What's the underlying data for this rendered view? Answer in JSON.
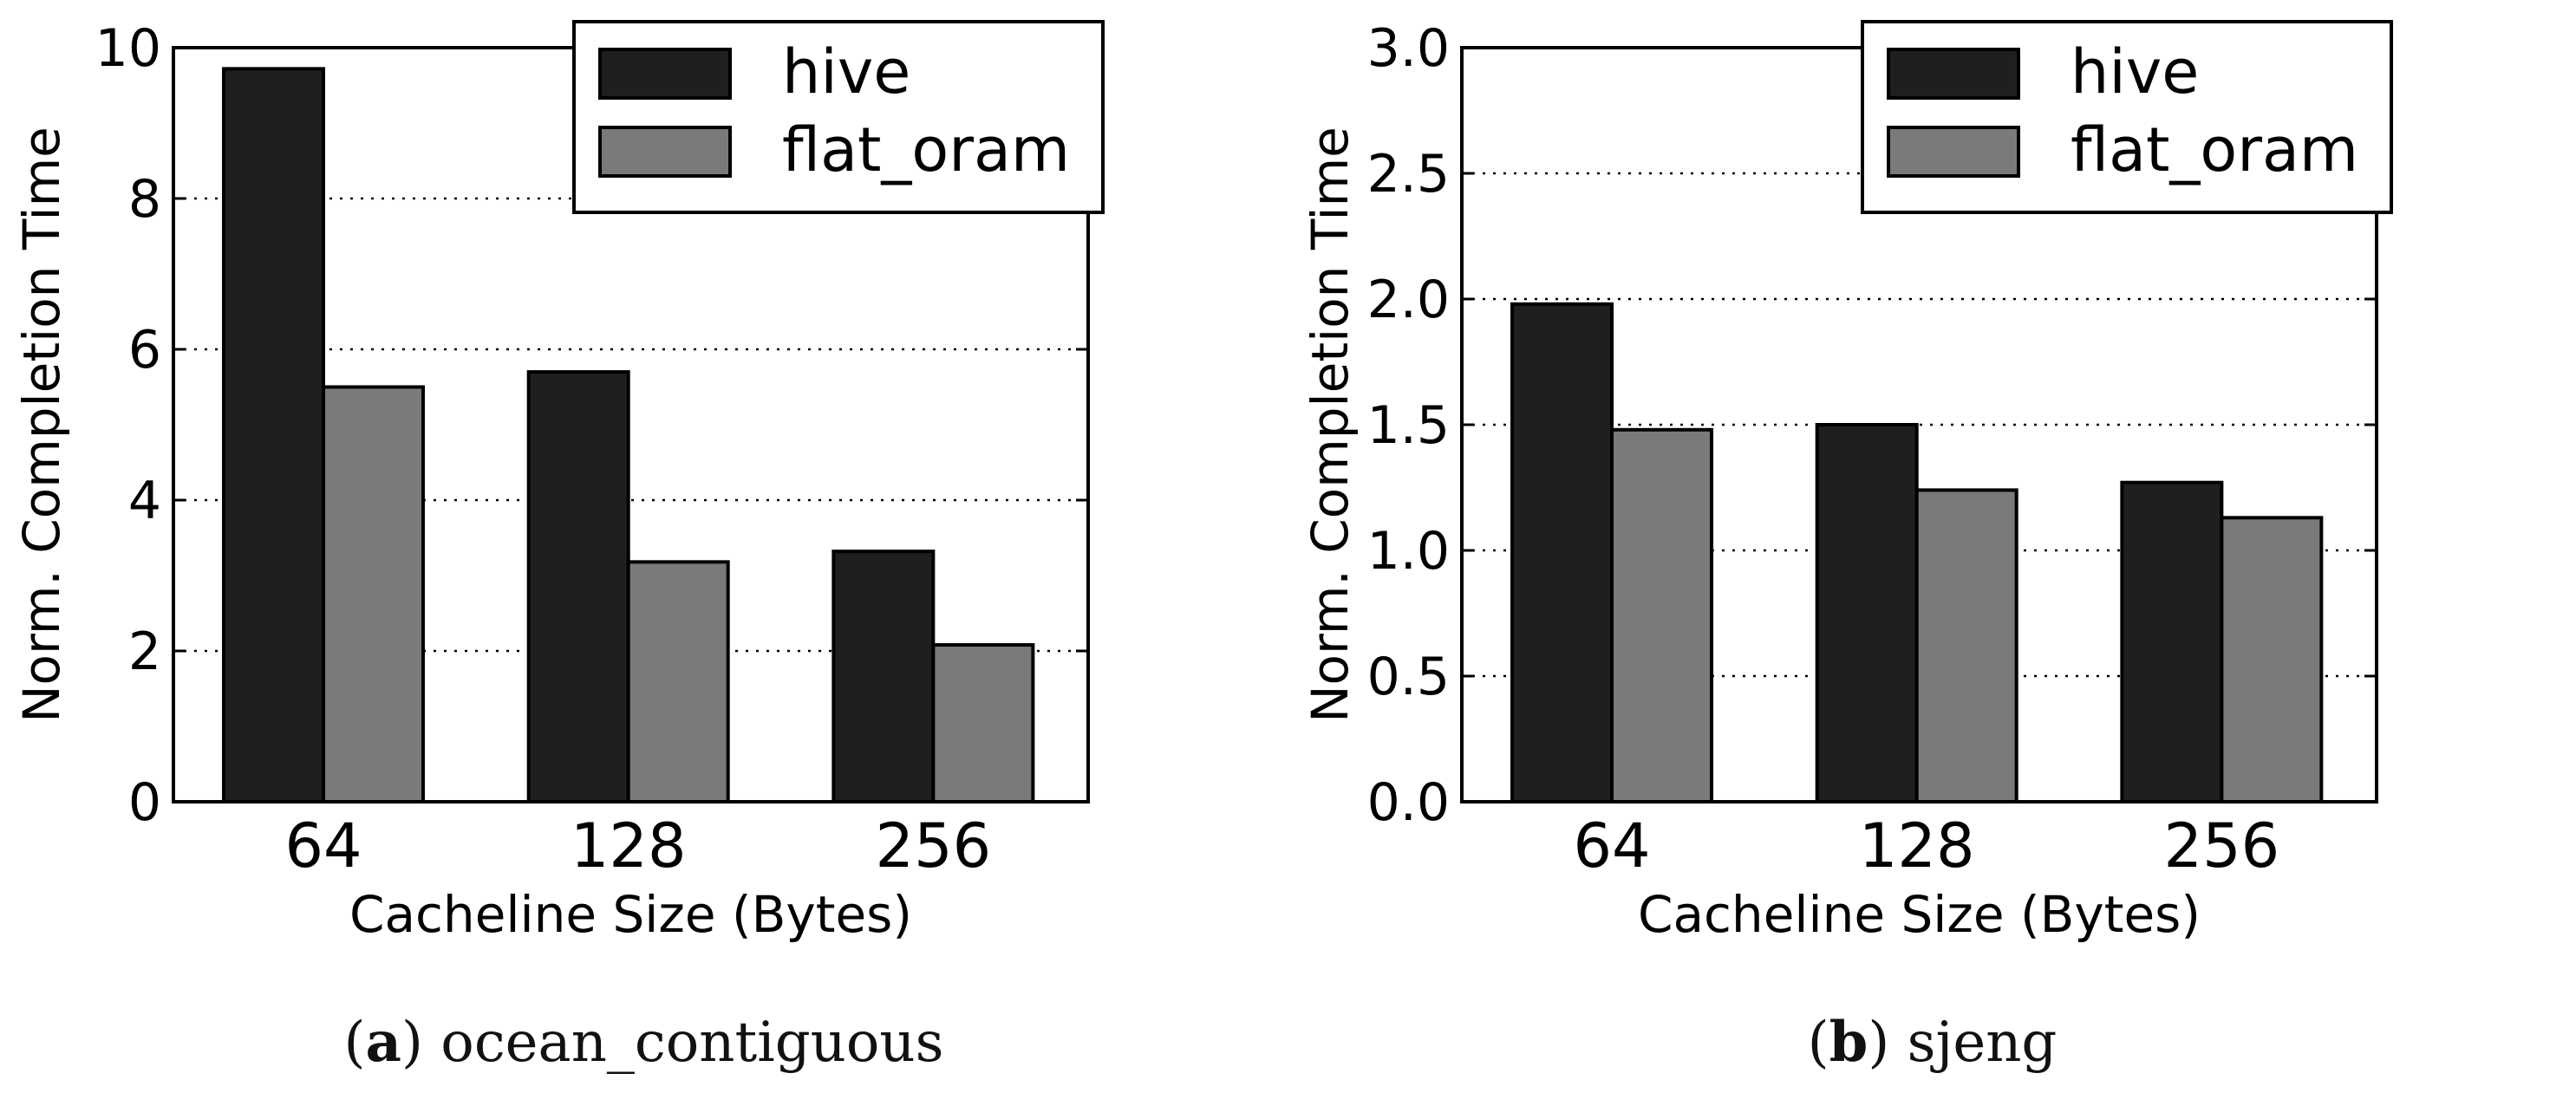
{
  "colors": {
    "hive": "#1f1f1f",
    "flat_oram": "#7a7a7a"
  },
  "chart_data": [
    {
      "type": "bar",
      "panel_label": "a",
      "caption": "ocean_contiguous",
      "categories": [
        "64",
        "128",
        "256"
      ],
      "series": [
        {
          "name": "hive",
          "values": [
            9.72,
            5.7,
            3.32
          ]
        },
        {
          "name": "flat_oram",
          "values": [
            5.5,
            3.18,
            2.08
          ]
        }
      ],
      "xlabel": "Cacheline Size (Bytes)",
      "ylabel": "Norm. Completion Time",
      "ylim": [
        0,
        10
      ],
      "yticks": [
        0,
        2,
        4,
        6,
        8,
        10
      ],
      "ytick_labels": [
        "0",
        "2",
        "4",
        "6",
        "8",
        "10"
      ],
      "grid": "y-dotted",
      "legend": "top-right"
    },
    {
      "type": "bar",
      "panel_label": "b",
      "caption": "sjeng",
      "categories": [
        "64",
        "128",
        "256"
      ],
      "series": [
        {
          "name": "hive",
          "values": [
            1.98,
            1.5,
            1.27
          ]
        },
        {
          "name": "flat_oram",
          "values": [
            1.48,
            1.24,
            1.13
          ]
        }
      ],
      "xlabel": "Cacheline Size (Bytes)",
      "ylabel": "Norm. Completion Time",
      "ylim": [
        0,
        3
      ],
      "yticks": [
        0,
        0.5,
        1,
        1.5,
        2,
        2.5,
        3
      ],
      "ytick_labels": [
        "0.0",
        "0.5",
        "1.0",
        "1.5",
        "2.0",
        "2.5",
        "3.0"
      ],
      "grid": "y-dotted",
      "legend": "top-right"
    }
  ]
}
